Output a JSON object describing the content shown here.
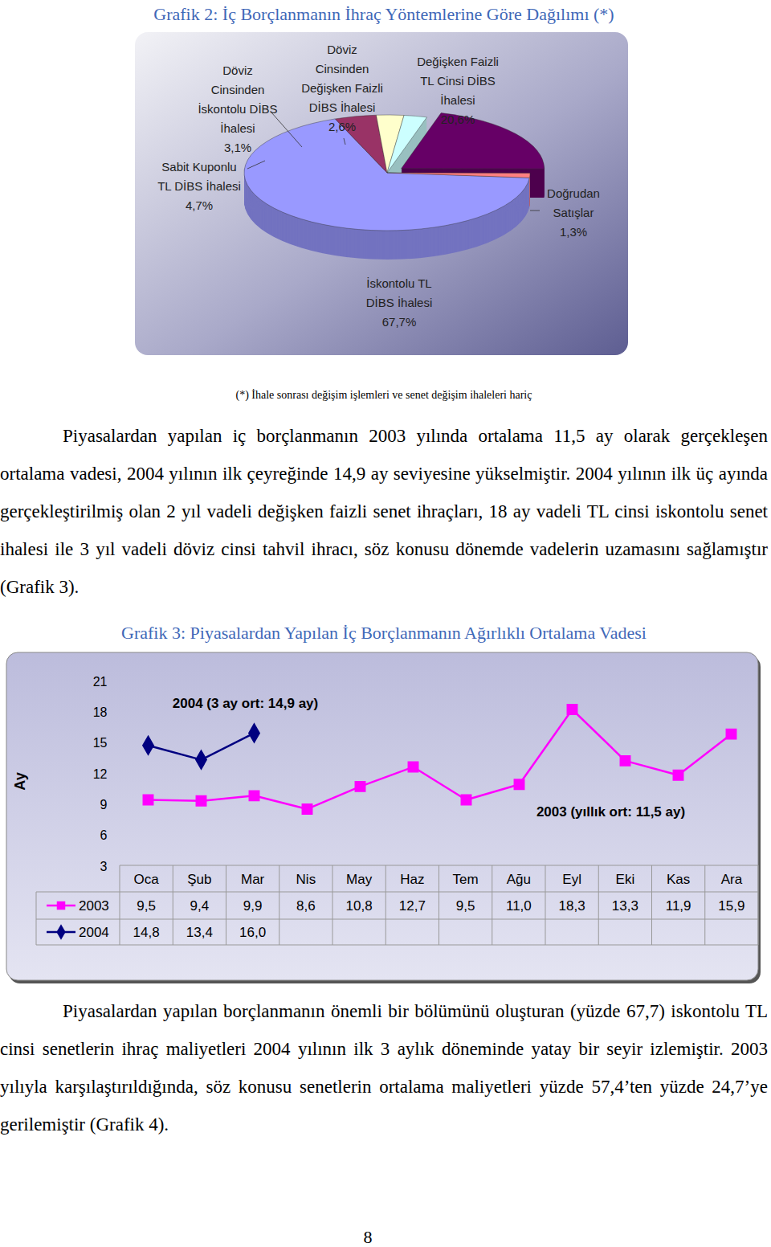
{
  "page": {
    "paragraphs": [
      "Piyasalardan yapılan iç borçlanmanın 2003 yılında ortalama 11,5 ay olarak gerçekleşen ortalama vadesi, 2004 yılının ilk çeyreğinde 14,9 ay seviyesine yükselmiştir. 2004 yılının ilk üç ayında gerçekleştirilmiş olan 2 yıl vadeli değişken faizli senet ihraçları, 18 ay vadeli TL cinsi iskontolu senet ihalesi ile 3 yıl vadeli döviz cinsi tahvil ihracı, söz konusu dönemde vadelerin uzamasını sağlamıştır (Grafik 3).",
      "Piyasalardan yapılan borçlanmanın önemli bir bölümünü oluşturan (yüzde 67,7) iskontolu TL cinsi senetlerin ihraç maliyetleri 2004 yılının ilk 3 aylık döneminde yatay bir seyir izlemiştir. 2003 yılıyla karşılaştırıldığında, söz konusu senetlerin ortalama maliyetleri yüzde 57,4’ten yüzde 24,7’ye gerilemiştir (Grafik 4)."
    ],
    "page_number": "8"
  },
  "chart_data": [
    {
      "type": "pie",
      "title": "Grafik 2: İç Borçlanmanın İhraç Yöntemlerine Göre Dağılımı (*)",
      "footnote": "(*) İhale sonrası değişim işlemleri ve senet değişim ihaleleri hariç",
      "categories": [
        "İskontolu TL DİBS İhalesi",
        "Sabit Kuponlu TL DİBS İhalesi",
        "Döviz Cinsinden İskontolu DİBS İhalesi",
        "Döviz Cinsinden Değişken Faizli DİBS İhalesi",
        "Değişken Faizli TL Cinsi DİBS İhalesi",
        "Doğrudan Satışlar"
      ],
      "values": [
        67.7,
        4.7,
        3.1,
        2.6,
        20.6,
        1.3
      ],
      "value_labels": [
        "67,7%",
        "4,7%",
        "3,1%",
        "2,6%",
        "20,6%",
        "1,3%"
      ],
      "colors": [
        "#9999ff",
        "#993366",
        "#ffffcc",
        "#ccffff",
        "#660066",
        "#ff8080"
      ],
      "data_labels": true
    },
    {
      "type": "line",
      "title": "Grafik 3: Piyasalardan Yapılan İç Borçlanmanın Ağırlıklı Ortalama Vadesi",
      "y_label": "Ay",
      "categories": [
        "Oca",
        "Şub",
        "Mar",
        "Nis",
        "May",
        "Haz",
        "Tem",
        "Ağu",
        "Eyl",
        "Eki",
        "Kas",
        "Ara"
      ],
      "series": [
        {
          "name": "2003",
          "color": "#ff00ff",
          "marker": "square",
          "values": [
            9.5,
            9.4,
            9.9,
            8.6,
            10.8,
            12.7,
            9.5,
            11.0,
            18.3,
            13.3,
            11.9,
            15.9
          ],
          "value_labels": [
            "9,5",
            "9,4",
            "9,9",
            "8,6",
            "10,8",
            "12,7",
            "9,5",
            "11,0",
            "18,3",
            "13,3",
            "11,9",
            "15,9"
          ]
        },
        {
          "name": "2004",
          "color": "#000080",
          "marker": "diamond",
          "values": [
            14.8,
            13.4,
            16.0,
            null,
            null,
            null,
            null,
            null,
            null,
            null,
            null,
            null
          ],
          "value_labels": [
            "14,8",
            "13,4",
            "16,0",
            null,
            null,
            null,
            null,
            null,
            null,
            null,
            null,
            null
          ]
        }
      ],
      "annotations": [
        "2004 (3 ay ort: 14,9 ay)",
        "2003 (yıllık ort: 11,5 ay)"
      ],
      "ylim": [
        3,
        21
      ],
      "yticks": [
        3,
        6,
        9,
        12,
        15,
        18,
        21
      ],
      "grid": false
    }
  ]
}
